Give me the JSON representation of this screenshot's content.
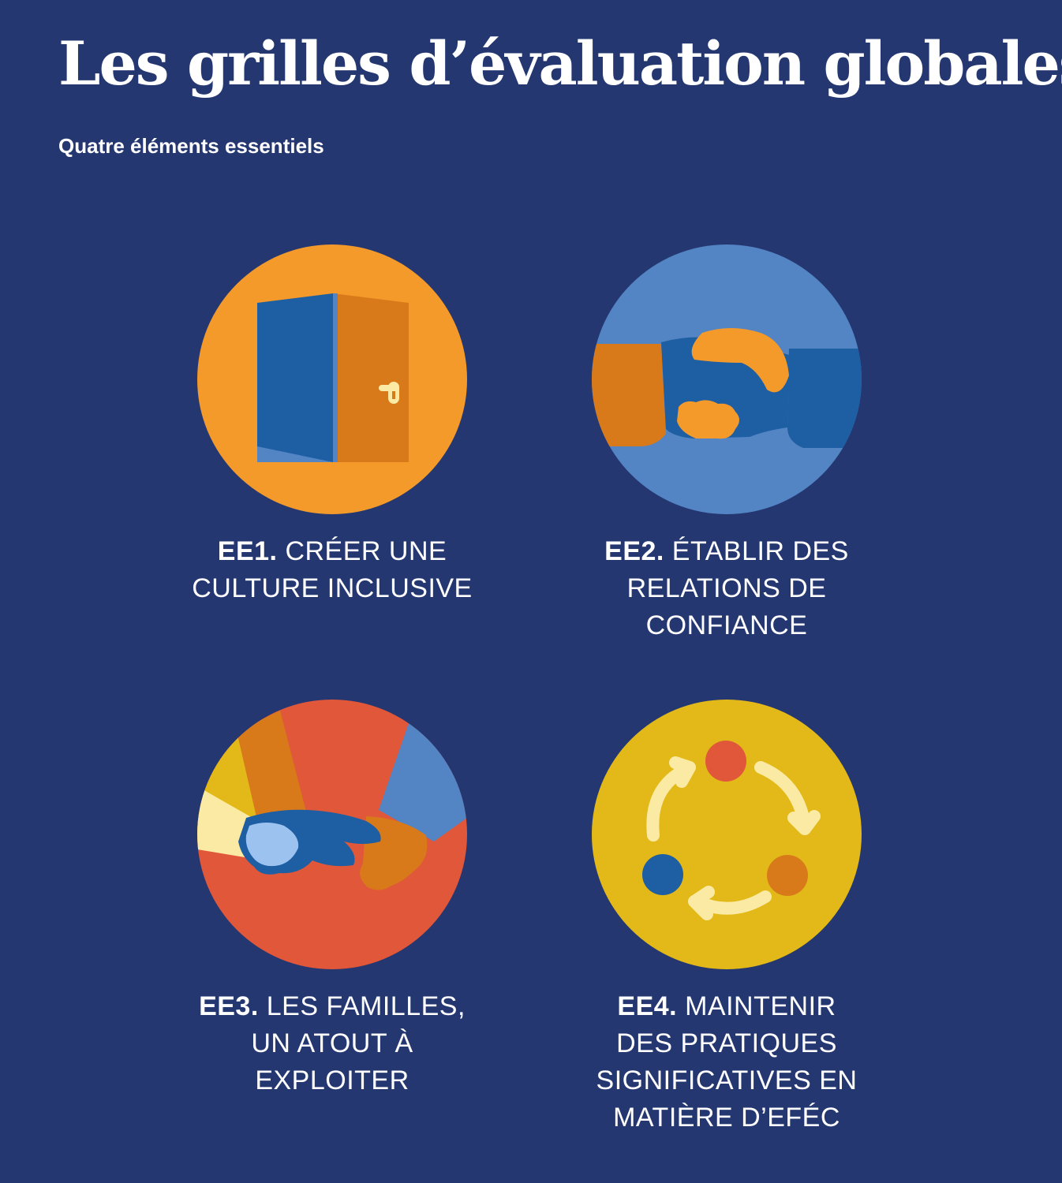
{
  "header": {
    "title": "Les grilles d’évaluation globales",
    "subtitle": "Quatre éléments essentiels"
  },
  "elements": [
    {
      "code": "EE1.",
      "line1": " CRÉER UNE",
      "line2": "CULTURE INCLUSIVE",
      "line3": "",
      "line4": "",
      "icon": "open-door-icon"
    },
    {
      "code": "EE2.",
      "line1": " ÉTABLIR DES",
      "line2": "RELATIONS DE",
      "line3": "CONFIANCE",
      "line4": "",
      "icon": "handshake-icon"
    },
    {
      "code": "EE3.",
      "line1": " LES FAMILLES,",
      "line2": "UN ATOUT À",
      "line3": "EXPLOITER",
      "line4": "",
      "icon": "joined-hands-icon"
    },
    {
      "code": "EE4.",
      "line1": " MAINTENIR",
      "line2": "DES PRATIQUES",
      "line3": "SIGNIFICATIVES EN",
      "line4": "MATIÈRE D’EFÉC",
      "icon": "cycle-icon"
    }
  ],
  "colors": {
    "background": "#243771",
    "orange": "#f39a2b",
    "dark_orange": "#d97a1a",
    "blue": "#1e5ea3",
    "light_blue": "#5384c4",
    "red": "#e0573a",
    "yellow": "#e2b918",
    "cream": "#fbeaa4"
  }
}
